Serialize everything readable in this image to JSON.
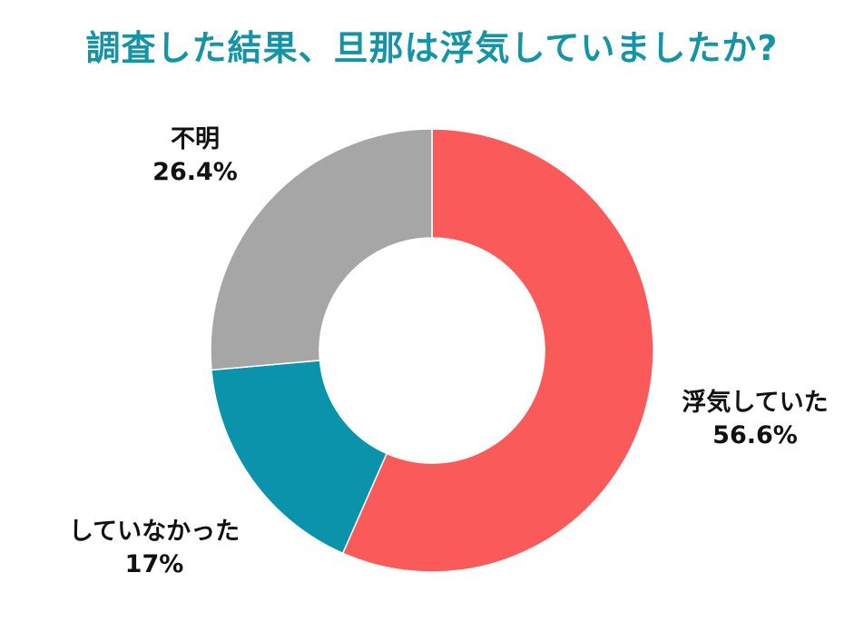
{
  "title": "調査した結果、旦那は浮気していましたか?",
  "chart_data": {
    "type": "pie",
    "donut": true,
    "title": "調査した結果、旦那は浮気していましたか?",
    "slices": [
      {
        "label": "浮気していた",
        "value": 56.6,
        "display": "56.6%",
        "color": "#fa5a5a"
      },
      {
        "label": "していなかった",
        "value": 17,
        "display": "17%",
        "color": "#0a93ab"
      },
      {
        "label": "不明",
        "value": 26.4,
        "display": "26.4%",
        "color": "#a6a6a6"
      }
    ]
  }
}
